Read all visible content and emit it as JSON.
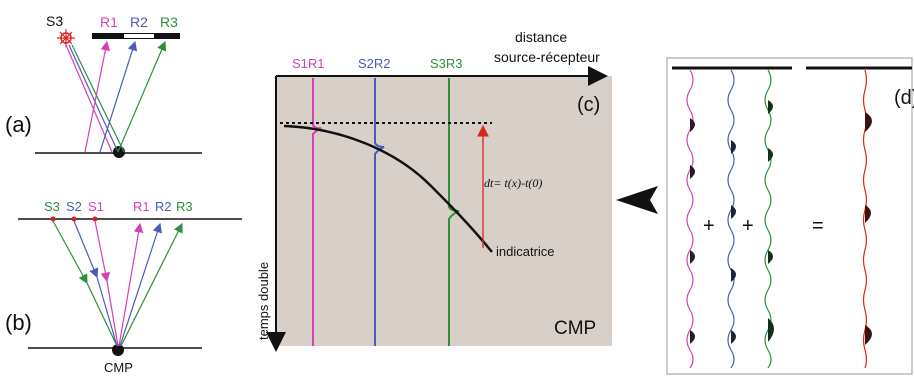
{
  "panels": {
    "a": {
      "label": "(a)",
      "source": "S3",
      "receivers": [
        "R1",
        "R2",
        "R3"
      ]
    },
    "b": {
      "label": "(b)",
      "sources": [
        "S3",
        "S2",
        "S1"
      ],
      "receivers": [
        "R1",
        "R2",
        "R3"
      ],
      "point": "CMP"
    },
    "c": {
      "label": "(c)",
      "x_axis_label_1": "distance",
      "x_axis_label_2": "source-récepteur",
      "y_axis_label": "temps double",
      "traces": [
        "S1R1",
        "S2R2",
        "S3R3"
      ],
      "formula": "dt= t(x)-t(0)",
      "curve_label": "indicatrice",
      "corner_label": "CMP"
    },
    "d": {
      "label": "(d)",
      "plus_1": "+",
      "plus_2": "+",
      "equals": "="
    }
  },
  "colors": {
    "pink": "#d63fb5",
    "blue": "#4a5bb8",
    "green": "#2e8f3a",
    "red": "#d9241c",
    "panel_bg": "#d9cfc9"
  }
}
